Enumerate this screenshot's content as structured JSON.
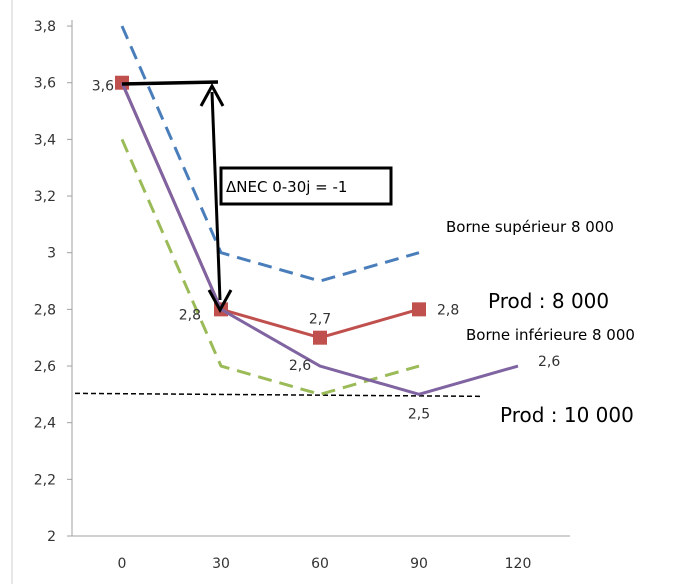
{
  "chart_data": {
    "type": "line",
    "x": [
      0,
      30,
      60,
      90,
      120
    ],
    "x_tick_labels": [
      "0",
      "30",
      "60",
      "90",
      "120"
    ],
    "y_tick_labels": [
      "2",
      "2,2",
      "2,4",
      "2,6",
      "2,8",
      "3",
      "3,2",
      "3,4",
      "3,6",
      "3,8"
    ],
    "ylim": [
      2,
      3.8
    ],
    "grid": false,
    "series": [
      {
        "name": "Borne supérieur 8 000",
        "style": "dashed",
        "color": "#4a7ebb",
        "x": [
          0,
          30,
          60,
          90
        ],
        "values": [
          3.8,
          3.0,
          2.9,
          3.0
        ]
      },
      {
        "name": "Prod : 8 000",
        "style": "solid-markers",
        "color": "#c0504d",
        "x": [
          0,
          30,
          60,
          90
        ],
        "values": [
          3.6,
          2.8,
          2.7,
          2.8
        ]
      },
      {
        "name": "Borne inférieure 8 000",
        "style": "dashed",
        "color": "#9bbb59",
        "x": [
          0,
          30,
          60,
          90
        ],
        "values": [
          3.4,
          2.6,
          2.5,
          2.6
        ]
      },
      {
        "name": "",
        "style": "solid",
        "color": "#8064a2",
        "x": [
          0,
          30,
          60,
          90,
          120
        ],
        "values": [
          3.6,
          2.8,
          2.6,
          2.5,
          2.6
        ]
      }
    ],
    "reference_line": {
      "name": "Prod : 10 000",
      "y": 2.5,
      "color": "#000000",
      "style": "dashed"
    },
    "data_labels": [
      {
        "text": "3,6",
        "x": 0,
        "y": 3.6
      },
      {
        "text": "2,8",
        "x": 30,
        "y": 2.8
      },
      {
        "text": "2,7",
        "x": 60,
        "y": 2.7
      },
      {
        "text": "2,8",
        "x": 90,
        "y": 2.8
      },
      {
        "text": "2,6",
        "x": 60,
        "y": 2.6
      },
      {
        "text": "2,5",
        "x": 90,
        "y": 2.5
      },
      {
        "text": "2,6",
        "x": 120,
        "y": 2.6
      }
    ],
    "annotation_box": "ΔNEC 0-30j = -1",
    "series_labels": {
      "upper": "Borne supérieur 8 000",
      "prod8000": "Prod : 8 000",
      "lower": "Borne inférieure 8 000",
      "prod10000": "Prod : 10 000"
    }
  }
}
